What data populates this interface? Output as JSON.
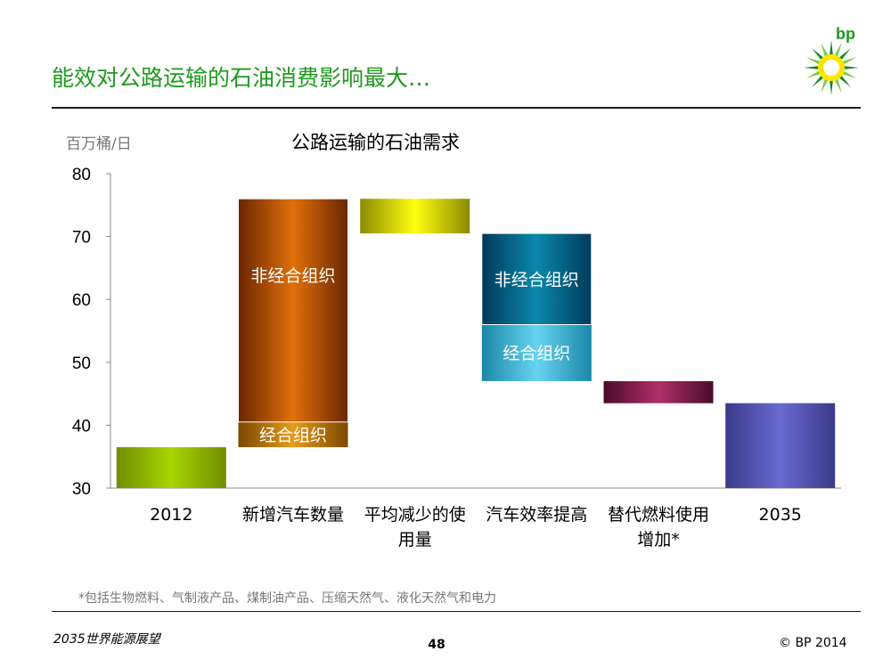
{
  "slide": {
    "title": "能效对公路运输的石油消费影响最大…",
    "footnote": "*包括生物燃料、气制液产品、煤制油产品、压缩天然气、液化天然气和电力",
    "footer_left": "2035世界能源展望",
    "page_number": "48",
    "copyright": "© BP 2014",
    "brand_text": "bp",
    "brand_color": "#1e9a1e"
  },
  "chart_data": {
    "type": "bar",
    "subtype": "waterfall",
    "title": "公路运输的石油需求",
    "ylabel": "百万桶/日",
    "ylim": [
      30,
      80
    ],
    "yticks": [
      30,
      40,
      50,
      60,
      70,
      80
    ],
    "categories": [
      [
        "2012"
      ],
      [
        "新增汽车数量"
      ],
      [
        "平均减少的使",
        "用量"
      ],
      [
        "汽车效率提高"
      ],
      [
        "替代燃料使用",
        "增加*"
      ],
      [
        "2035"
      ]
    ],
    "bars": [
      {
        "kind": "total",
        "segments": [
          {
            "from": 30,
            "to": 36.5,
            "label": "",
            "colors": [
              "#6f8e00",
              "#a8d400",
              "#6f8e00"
            ]
          }
        ]
      },
      {
        "kind": "increase",
        "segments": [
          {
            "from": 36.5,
            "to": 40.5,
            "label": "经合组织",
            "colors": [
              "#7a4800",
              "#e89a1a",
              "#7a4800"
            ]
          },
          {
            "from": 40.5,
            "to": 76,
            "label": "非经合组织",
            "colors": [
              "#6a2600",
              "#e0700a",
              "#6a2600"
            ]
          }
        ]
      },
      {
        "kind": "decrease",
        "segments": [
          {
            "from": 70.5,
            "to": 76,
            "label": "",
            "colors": [
              "#8a8a00",
              "#ffff10",
              "#8a8a00"
            ]
          }
        ]
      },
      {
        "kind": "decrease",
        "segments": [
          {
            "from": 47,
            "to": 56,
            "label": "经合组织",
            "colors": [
              "#1a86a8",
              "#66d4f0",
              "#1a86a8"
            ]
          },
          {
            "from": 56,
            "to": 70.5,
            "label": "非经合组织",
            "colors": [
              "#003a5a",
              "#0a88ac",
              "#003a5a"
            ]
          }
        ]
      },
      {
        "kind": "decrease",
        "segments": [
          {
            "from": 43.5,
            "to": 47,
            "label": "",
            "colors": [
              "#4a0a2a",
              "#b03068",
              "#4a0a2a"
            ]
          }
        ]
      },
      {
        "kind": "total",
        "segments": [
          {
            "from": 30,
            "to": 43.5,
            "label": "",
            "colors": [
              "#3a3a8a",
              "#6a6ad2",
              "#3a3a8a"
            ]
          }
        ]
      }
    ]
  }
}
